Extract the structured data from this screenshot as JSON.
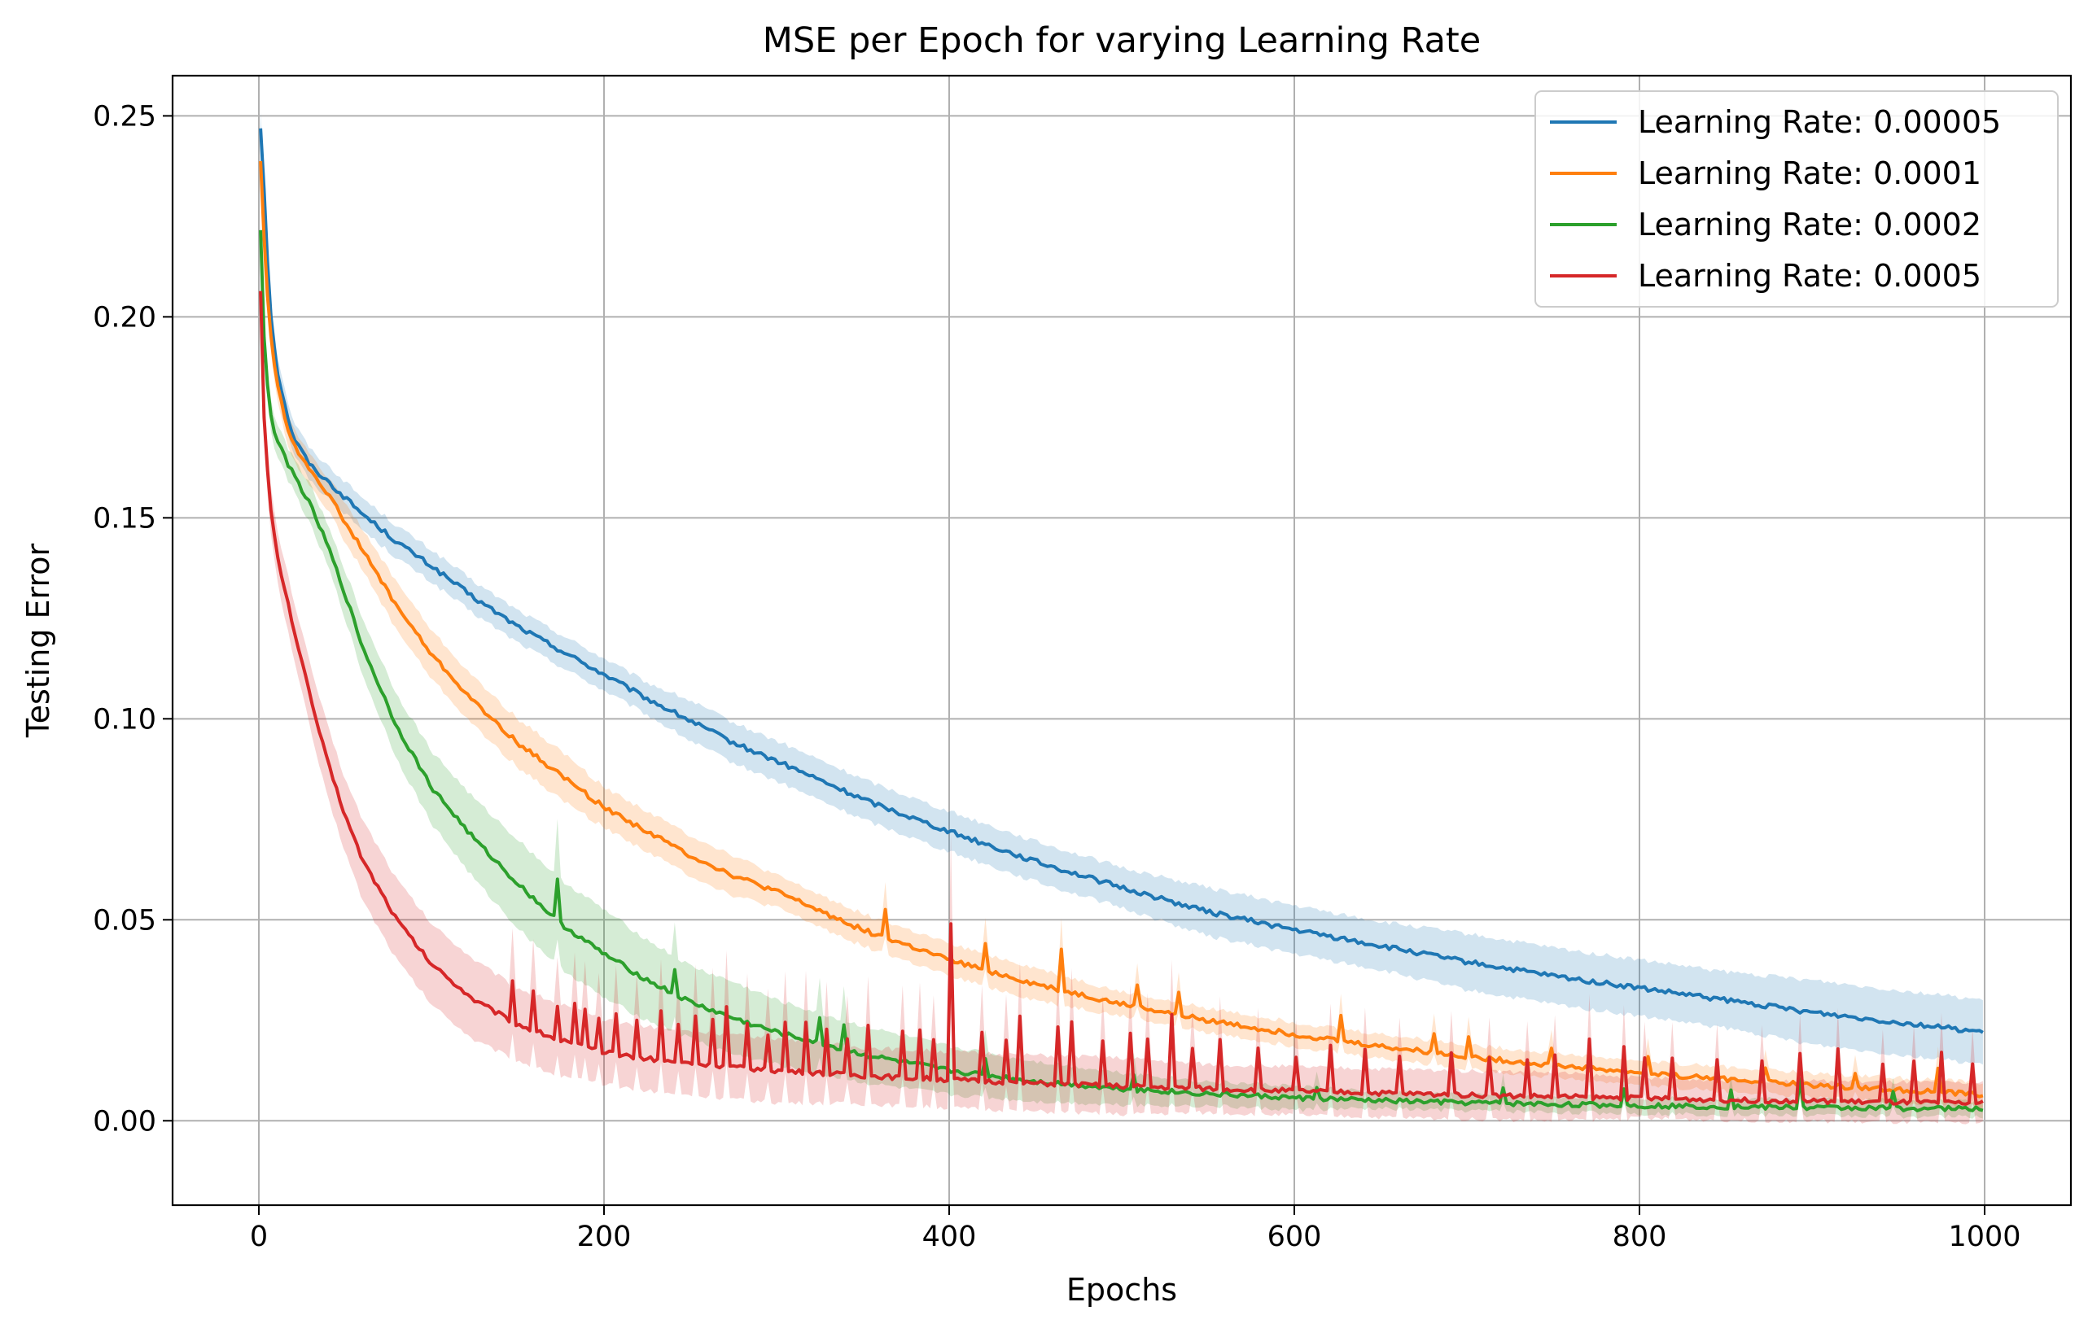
{
  "chart_data": {
    "type": "line",
    "title": "MSE per Epoch for varying Learning Rate",
    "xlabel": "Epochs",
    "ylabel": "Testing Error",
    "xlim": [
      -50,
      1050
    ],
    "ylim": [
      -0.021,
      0.26
    ],
    "xticks": [
      0,
      200,
      400,
      600,
      800,
      1000
    ],
    "yticks": [
      0.0,
      0.05,
      0.1,
      0.15,
      0.2,
      0.25
    ],
    "xtick_labels": [
      "0",
      "200",
      "400",
      "600",
      "800",
      "1000"
    ],
    "ytick_labels": [
      "0.00",
      "0.05",
      "0.10",
      "0.15",
      "0.20",
      "0.25"
    ],
    "grid": true,
    "legend_position": "top-right",
    "series": [
      {
        "name": "Learning Rate: 0.00005",
        "color": "#1f77b4",
        "x": [
          1,
          3,
          6,
          10,
          15,
          20,
          30,
          40,
          50,
          60,
          80,
          100,
          125,
          150,
          175,
          200,
          225,
          250,
          275,
          300,
          350,
          400,
          450,
          500,
          550,
          600,
          650,
          700,
          750,
          800,
          850,
          900,
          950,
          1000
        ],
        "y": [
          0.247,
          0.232,
          0.205,
          0.188,
          0.178,
          0.17,
          0.163,
          0.159,
          0.155,
          0.151,
          0.144,
          0.138,
          0.13,
          0.123,
          0.117,
          0.111,
          0.105,
          0.0995,
          0.094,
          0.0895,
          0.08,
          0.072,
          0.0645,
          0.058,
          0.052,
          0.0475,
          0.0435,
          0.0395,
          0.036,
          0.033,
          0.03,
          0.027,
          0.0245,
          0.022
        ],
        "band": [
          0.004,
          0.004,
          0.004,
          0.004,
          0.004,
          0.004,
          0.004,
          0.004,
          0.004,
          0.004,
          0.004,
          0.004,
          0.004,
          0.004,
          0.004,
          0.004,
          0.004,
          0.005,
          0.005,
          0.005,
          0.005,
          0.005,
          0.005,
          0.005,
          0.006,
          0.006,
          0.006,
          0.007,
          0.007,
          0.007,
          0.007,
          0.008,
          0.008,
          0.008
        ]
      },
      {
        "name": "Learning Rate: 0.0001",
        "color": "#ff7f0e",
        "x": [
          1,
          3,
          6,
          10,
          15,
          20,
          30,
          40,
          50,
          60,
          80,
          100,
          125,
          150,
          175,
          200,
          225,
          250,
          275,
          300,
          350,
          400,
          450,
          500,
          550,
          600,
          650,
          700,
          750,
          800,
          850,
          900,
          950,
          1000
        ],
        "y": [
          0.239,
          0.22,
          0.198,
          0.185,
          0.175,
          0.168,
          0.162,
          0.156,
          0.149,
          0.142,
          0.128,
          0.116,
          0.104,
          0.094,
          0.086,
          0.078,
          0.072,
          0.066,
          0.061,
          0.057,
          0.0475,
          0.04,
          0.034,
          0.029,
          0.025,
          0.0215,
          0.0185,
          0.016,
          0.0138,
          0.012,
          0.0103,
          0.0089,
          0.0077,
          0.0065
        ],
        "band": [
          0.004,
          0.004,
          0.004,
          0.004,
          0.004,
          0.004,
          0.004,
          0.004,
          0.005,
          0.005,
          0.006,
          0.006,
          0.006,
          0.006,
          0.006,
          0.005,
          0.005,
          0.005,
          0.005,
          0.004,
          0.004,
          0.004,
          0.004,
          0.003,
          0.003,
          0.003,
          0.003,
          0.003,
          0.003,
          0.003,
          0.003,
          0.003,
          0.003,
          0.003
        ],
        "spikes": [
          [
            362,
            0.007
          ],
          [
            420,
            0.006
          ],
          [
            465,
            0.01
          ],
          [
            508,
            0.006
          ],
          [
            533,
            0.005
          ],
          [
            627,
            0.006
          ],
          [
            680,
            0.005
          ],
          [
            700,
            0.005
          ],
          [
            748,
            0.004
          ],
          [
            804,
            0.004
          ],
          [
            872,
            0.004
          ],
          [
            925,
            0.004
          ],
          [
            972,
            0.006
          ]
        ]
      },
      {
        "name": "Learning Rate: 0.0002",
        "color": "#2ca02c",
        "x": [
          1,
          3,
          6,
          10,
          15,
          20,
          30,
          40,
          50,
          60,
          80,
          100,
          125,
          150,
          175,
          200,
          225,
          250,
          275,
          300,
          350,
          400,
          450,
          500,
          550,
          600,
          650,
          700,
          750,
          800,
          850,
          900,
          950,
          1000
        ],
        "y": [
          0.222,
          0.195,
          0.177,
          0.17,
          0.165,
          0.161,
          0.153,
          0.143,
          0.131,
          0.118,
          0.098,
          0.083,
          0.07,
          0.059,
          0.049,
          0.0415,
          0.035,
          0.0295,
          0.0255,
          0.022,
          0.0165,
          0.0125,
          0.0098,
          0.008,
          0.0067,
          0.0057,
          0.005,
          0.0045,
          0.0041,
          0.0038,
          0.0035,
          0.0033,
          0.0031,
          0.003
        ],
        "band": [
          0.004,
          0.004,
          0.004,
          0.004,
          0.004,
          0.004,
          0.005,
          0.005,
          0.006,
          0.007,
          0.008,
          0.009,
          0.01,
          0.011,
          0.011,
          0.011,
          0.01,
          0.009,
          0.009,
          0.008,
          0.007,
          0.006,
          0.005,
          0.004,
          0.003,
          0.003,
          0.002,
          0.002,
          0.002,
          0.002,
          0.002,
          0.002,
          0.002,
          0.002
        ],
        "spikes": [
          [
            172,
            0.01
          ],
          [
            241,
            0.006
          ],
          [
            325,
            0.006
          ],
          [
            338,
            0.006
          ],
          [
            420,
            0.004
          ],
          [
            507,
            0.004
          ],
          [
            612,
            0.003
          ],
          [
            720,
            0.004
          ],
          [
            790,
            0.004
          ],
          [
            853,
            0.004
          ],
          [
            892,
            0.007
          ],
          [
            947,
            0.004
          ]
        ]
      },
      {
        "name": "Learning Rate: 0.0005",
        "color": "#d62728",
        "x": [
          1,
          3,
          6,
          10,
          15,
          20,
          30,
          40,
          50,
          60,
          80,
          100,
          125,
          150,
          175,
          200,
          225,
          250,
          275,
          300,
          350,
          400,
          450,
          500,
          550,
          600,
          650,
          700,
          750,
          800,
          850,
          900,
          950,
          1000
        ],
        "y": [
          0.207,
          0.175,
          0.155,
          0.142,
          0.132,
          0.123,
          0.105,
          0.089,
          0.076,
          0.065,
          0.05,
          0.039,
          0.03,
          0.024,
          0.02,
          0.017,
          0.0155,
          0.0143,
          0.0133,
          0.0125,
          0.0112,
          0.0102,
          0.0093,
          0.0086,
          0.008,
          0.0074,
          0.0069,
          0.0064,
          0.006,
          0.0056,
          0.0052,
          0.0049,
          0.0046,
          0.0043
        ],
        "band": [
          0.005,
          0.006,
          0.006,
          0.006,
          0.007,
          0.007,
          0.008,
          0.009,
          0.009,
          0.01,
          0.01,
          0.01,
          0.01,
          0.009,
          0.009,
          0.008,
          0.008,
          0.008,
          0.008,
          0.008,
          0.007,
          0.007,
          0.007,
          0.007,
          0.006,
          0.006,
          0.006,
          0.006,
          0.006,
          0.005,
          0.005,
          0.005,
          0.005,
          0.005
        ],
        "spikes": [
          [
            147,
            0.01
          ],
          [
            158,
            0.01
          ],
          [
            172,
            0.008
          ],
          [
            182,
            0.01
          ],
          [
            188,
            0.009
          ],
          [
            197,
            0.008
          ],
          [
            207,
            0.01
          ],
          [
            218,
            0.009
          ],
          [
            232,
            0.012
          ],
          [
            243,
            0.009
          ],
          [
            252,
            0.012
          ],
          [
            263,
            0.012
          ],
          [
            270,
            0.015
          ],
          [
            282,
            0.011
          ],
          [
            295,
            0.009
          ],
          [
            305,
            0.012
          ],
          [
            316,
            0.013
          ],
          [
            328,
            0.011
          ],
          [
            340,
            0.009
          ],
          [
            352,
            0.013
          ],
          [
            372,
            0.011
          ],
          [
            382,
            0.012
          ],
          [
            390,
            0.01
          ],
          [
            400,
            0.039
          ],
          [
            418,
            0.012
          ],
          [
            432,
            0.011
          ],
          [
            440,
            0.016
          ],
          [
            462,
            0.014
          ],
          [
            470,
            0.016
          ],
          [
            488,
            0.011
          ],
          [
            505,
            0.013
          ],
          [
            515,
            0.012
          ],
          [
            528,
            0.018
          ],
          [
            540,
            0.01
          ],
          [
            556,
            0.012
          ],
          [
            578,
            0.01
          ],
          [
            600,
            0.008
          ],
          [
            620,
            0.011
          ],
          [
            640,
            0.011
          ],
          [
            660,
            0.009
          ],
          [
            690,
            0.011
          ],
          [
            712,
            0.01
          ],
          [
            735,
            0.009
          ],
          [
            750,
            0.01
          ],
          [
            770,
            0.014
          ],
          [
            790,
            0.013
          ],
          [
            803,
            0.01
          ],
          [
            818,
            0.01
          ],
          [
            845,
            0.01
          ],
          [
            870,
            0.01
          ],
          [
            893,
            0.012
          ],
          [
            915,
            0.013
          ],
          [
            940,
            0.009
          ],
          [
            958,
            0.01
          ],
          [
            975,
            0.012
          ],
          [
            992,
            0.01
          ]
        ]
      }
    ]
  }
}
